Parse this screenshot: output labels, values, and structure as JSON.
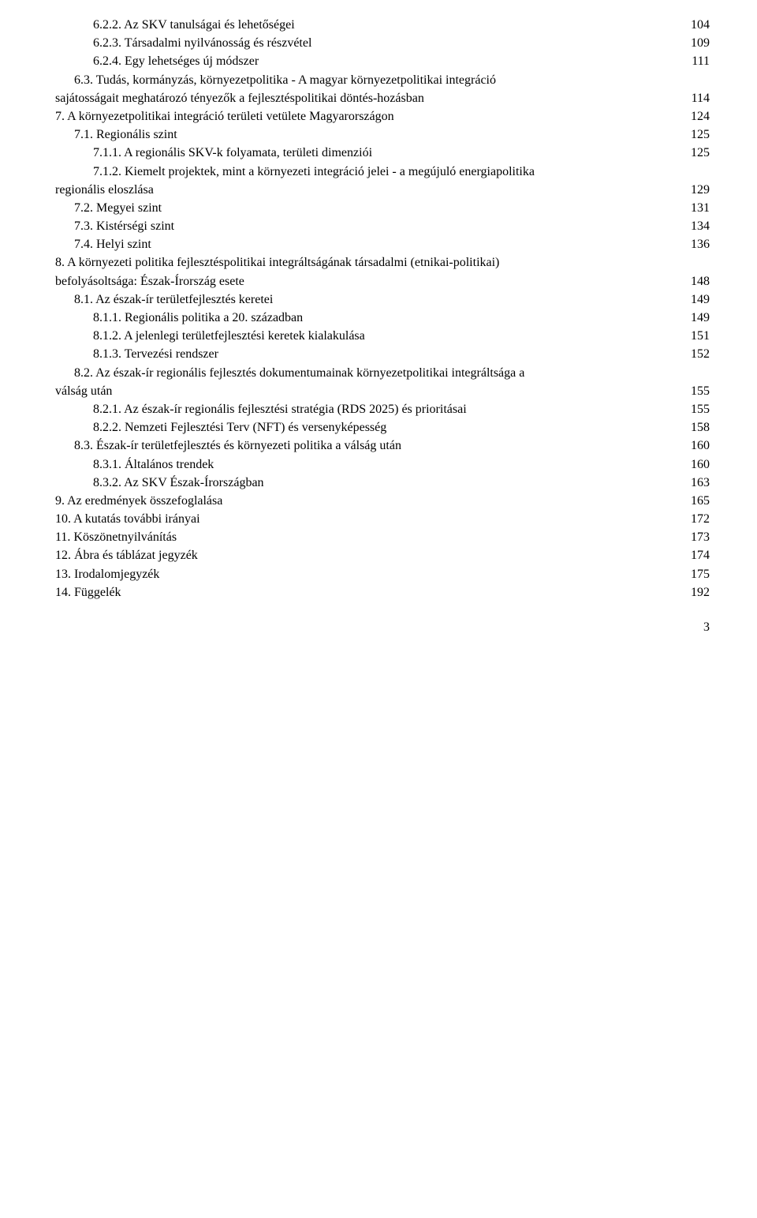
{
  "page_footer_number": "3",
  "toc": [
    {
      "indent": 2,
      "label": "6.2.2. Az SKV tanulságai és lehetőségei",
      "page": "104"
    },
    {
      "indent": 2,
      "label": "6.2.3. Társadalmi nyilvánosság és részvétel",
      "page": "109"
    },
    {
      "indent": 2,
      "label": "6.2.4. Egy lehetséges új módszer",
      "page": "111"
    },
    {
      "indent": 1,
      "label": "6.3. Tudás, kormányzás, környezetpolitika - A magyar környezetpolitikai integráció",
      "cont": "sajátosságait meghatározó tényezők a fejlesztéspolitikai döntés-hozásban",
      "page": "114"
    },
    {
      "indent": 0,
      "label": "7. A környezetpolitikai integráció területi vetülete Magyarországon",
      "page": "124"
    },
    {
      "indent": 1,
      "label": "7.1. Regionális szint",
      "page": "125"
    },
    {
      "indent": 2,
      "label": "7.1.1. A regionális SKV-k folyamata, területi dimenziói",
      "page": "125"
    },
    {
      "indent": 2,
      "label": "7.1.2. Kiemelt projektek, mint a környezeti integráció jelei - a megújuló energiapolitika",
      "cont": "regionális eloszlása",
      "page": "129"
    },
    {
      "indent": 1,
      "label": "7.2. Megyei szint",
      "page": "131"
    },
    {
      "indent": 1,
      "label": "7.3. Kistérségi szint",
      "page": "134"
    },
    {
      "indent": 1,
      "label": "7.4. Helyi szint",
      "page": "136"
    },
    {
      "indent": 0,
      "label": "8. A környezeti politika fejlesztéspolitikai integráltságának társadalmi (etnikai-politikai)",
      "cont": "befolyásoltsága: Észak-Írország esete",
      "page": "148"
    },
    {
      "indent": 1,
      "label": "8.1. Az észak-ír területfejlesztés keretei",
      "page": "149"
    },
    {
      "indent": 2,
      "label": "8.1.1. Regionális politika a 20. században",
      "page": "149"
    },
    {
      "indent": 2,
      "label": "8.1.2. A jelenlegi területfejlesztési keretek kialakulása",
      "page": "151"
    },
    {
      "indent": 2,
      "label": "8.1.3. Tervezési rendszer",
      "page": "152"
    },
    {
      "indent": 1,
      "label": "8.2. Az észak-ír regionális fejlesztés dokumentumainak környezetpolitikai integráltsága a",
      "cont": "válság után",
      "page": "155"
    },
    {
      "indent": 2,
      "label": "8.2.1. Az észak-ír regionális fejlesztési stratégia (RDS 2025) és prioritásai",
      "page": "155"
    },
    {
      "indent": 2,
      "label": "8.2.2. Nemzeti Fejlesztési Terv (NFT) és versenyképesség",
      "page": "158"
    },
    {
      "indent": 1,
      "label": "8.3. Észak-ír területfejlesztés és környezeti politika a válság után",
      "page": "160"
    },
    {
      "indent": 2,
      "label": "8.3.1. Általános trendek",
      "page": "160"
    },
    {
      "indent": 2,
      "label": "8.3.2. Az SKV Észak-Írországban",
      "page": "163"
    },
    {
      "indent": 0,
      "label": "9. Az eredmények összefoglalása",
      "page": "165"
    },
    {
      "indent": 0,
      "label": "10. A kutatás további irányai",
      "page": "172"
    },
    {
      "indent": 0,
      "label": "11. Köszönetnyilvánítás",
      "page": "173"
    },
    {
      "indent": 0,
      "label": "12. Ábra és táblázat jegyzék",
      "page": "174"
    },
    {
      "indent": 0,
      "label": "13. Irodalomjegyzék",
      "page": "175"
    },
    {
      "indent": 0,
      "label": "14. Függelék",
      "page": "192"
    }
  ]
}
